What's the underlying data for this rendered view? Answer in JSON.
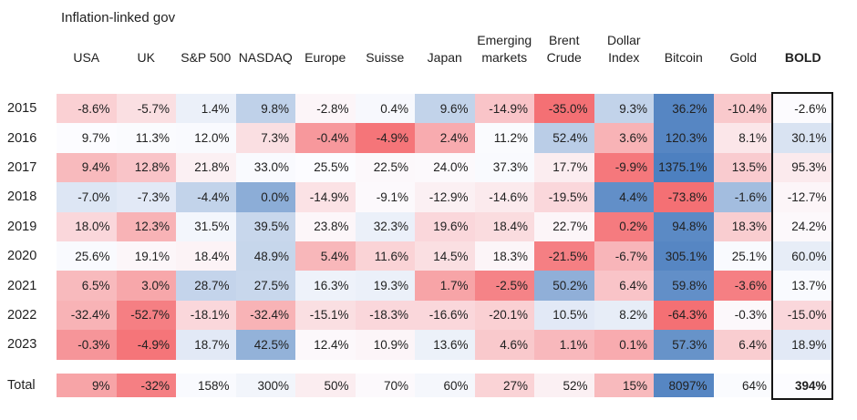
{
  "title": "Inflation-linked gov",
  "chart_data": {
    "type": "heatmap",
    "columns": [
      "USA",
      "UK",
      "S&P 500",
      "NASDAQ",
      "Europe",
      "Suisse",
      "Japan",
      "Emerging\nmarkets",
      "Brent\nCrude",
      "Dollar\nIndex",
      "Bitcoin",
      "Gold",
      "BOLD"
    ],
    "bold_column": "BOLD",
    "rows": [
      "2015",
      "2016",
      "2017",
      "2018",
      "2019",
      "2020",
      "2021",
      "2022",
      "2023",
      "Total"
    ],
    "values": [
      [
        "-8.6%",
        "-5.7%",
        "1.4%",
        "9.8%",
        "-2.8%",
        "0.4%",
        "9.6%",
        "-14.9%",
        "-35.0%",
        "9.3%",
        "36.2%",
        "-10.4%",
        "-2.6%"
      ],
      [
        "9.7%",
        "11.3%",
        "12.0%",
        "7.3%",
        "-0.4%",
        "-4.9%",
        "2.4%",
        "11.2%",
        "52.4%",
        "3.6%",
        "120.3%",
        "8.1%",
        "30.1%"
      ],
      [
        "9.4%",
        "12.8%",
        "21.8%",
        "33.0%",
        "25.5%",
        "22.5%",
        "24.0%",
        "37.3%",
        "17.7%",
        "-9.9%",
        "1375.1%",
        "13.5%",
        "95.3%"
      ],
      [
        "-7.0%",
        "-7.3%",
        "-4.4%",
        "0.0%",
        "-14.9%",
        "-9.1%",
        "-12.9%",
        "-14.6%",
        "-19.5%",
        "4.4%",
        "-73.8%",
        "-1.6%",
        "-12.7%"
      ],
      [
        "18.0%",
        "12.3%",
        "31.5%",
        "39.5%",
        "23.8%",
        "32.3%",
        "19.6%",
        "18.4%",
        "22.7%",
        "0.2%",
        "94.8%",
        "18.3%",
        "24.2%"
      ],
      [
        "25.6%",
        "19.1%",
        "18.4%",
        "48.9%",
        "5.4%",
        "11.6%",
        "14.5%",
        "18.3%",
        "-21.5%",
        "-6.7%",
        "305.1%",
        "25.1%",
        "60.0%"
      ],
      [
        "6.5%",
        "3.0%",
        "28.7%",
        "27.5%",
        "16.3%",
        "19.3%",
        "1.7%",
        "-2.5%",
        "50.2%",
        "6.4%",
        "59.8%",
        "-3.6%",
        "13.7%"
      ],
      [
        "-32.4%",
        "-52.7%",
        "-18.1%",
        "-32.4%",
        "-15.1%",
        "-18.3%",
        "-16.6%",
        "-20.1%",
        "10.5%",
        "8.2%",
        "-64.3%",
        "-0.3%",
        "-15.0%"
      ],
      [
        "-0.3%",
        "-4.9%",
        "18.7%",
        "42.5%",
        "12.4%",
        "10.9%",
        "13.6%",
        "4.6%",
        "1.1%",
        "0.1%",
        "57.3%",
        "6.4%",
        "18.9%"
      ],
      [
        "9%",
        "-32%",
        "158%",
        "300%",
        "50%",
        "70%",
        "60%",
        "27%",
        "52%",
        "15%",
        "8097%",
        "64%",
        "394%"
      ]
    ],
    "shades": [
      [
        -0.3,
        -0.2,
        0.1,
        0.35,
        -0.05,
        0.03,
        0.33,
        -0.38,
        -0.95,
        0.33,
        0.95,
        -0.35,
        -0.01
      ],
      [
        0.0,
        0.01,
        0.02,
        -0.2,
        -0.68,
        -0.92,
        -0.55,
        0.01,
        0.38,
        -0.5,
        0.95,
        -0.15,
        0.2
      ],
      [
        -0.45,
        -0.38,
        -0.08,
        0.02,
        0.0,
        -0.03,
        -0.02,
        0.02,
        -0.1,
        -0.9,
        1.0,
        -0.33,
        -0.12
      ],
      [
        0.18,
        0.15,
        0.33,
        0.64,
        -0.18,
        -0.02,
        -0.08,
        -0.12,
        -0.25,
        0.88,
        -0.95,
        0.51,
        -0.05
      ],
      [
        -0.25,
        -0.5,
        0.05,
        0.3,
        -0.04,
        0.1,
        -0.25,
        -0.22,
        -0.05,
        -0.88,
        0.92,
        -0.32,
        -0.03
      ],
      [
        0.02,
        -0.04,
        -0.06,
        0.31,
        -0.47,
        -0.28,
        -0.2,
        -0.05,
        -0.85,
        -0.48,
        0.95,
        0.02,
        0.12
      ],
      [
        -0.45,
        -0.58,
        0.32,
        0.3,
        0.08,
        0.1,
        -0.6,
        -0.82,
        0.62,
        -0.38,
        0.88,
        -0.85,
        0.02
      ],
      [
        -0.5,
        -0.85,
        -0.25,
        -0.5,
        -0.2,
        -0.25,
        -0.25,
        -0.3,
        0.15,
        0.12,
        -0.95,
        -0.03,
        -0.25
      ],
      [
        -0.7,
        -0.92,
        0.15,
        0.6,
        -0.03,
        -0.05,
        0.09,
        -0.35,
        -0.46,
        -0.55,
        0.85,
        -0.32,
        0.15
      ],
      [
        -0.6,
        -0.85,
        0.02,
        0.06,
        -0.1,
        -0.02,
        0.04,
        -0.28,
        -0.08,
        -0.45,
        0.95,
        0.01,
        0.0
      ]
    ],
    "palette": {
      "negative_max": "#F4696D",
      "neutral": "#FCFCFF",
      "positive_max": "#4D80C0"
    },
    "highlight_box_column": "BOLD",
    "bold_cells": [
      [
        "Total",
        "BOLD"
      ]
    ],
    "legend_position": "none",
    "grid": false
  }
}
